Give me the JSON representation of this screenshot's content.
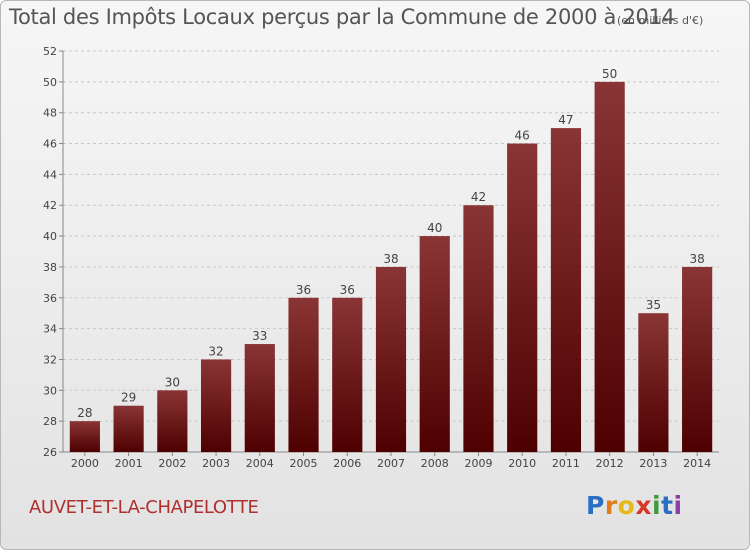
{
  "header": {
    "title": "Total des Impôts Locaux perçus par la Commune de 2000 à 2014",
    "unit": "(en milliers d'€)"
  },
  "footer": {
    "commune": "AUVET-ET-LA-CHAPELOTTE",
    "logo_letters": [
      "P",
      "r",
      "o",
      "x",
      "i",
      "t",
      "i"
    ]
  },
  "colors": {
    "bar_top": "#8a3535",
    "bar_bottom": "#4e0000",
    "grid": "#c8c8c8",
    "commune": "#b03030"
  },
  "chart_data": {
    "type": "bar",
    "title": "Total des Impôts Locaux perçus par la Commune de 2000 à 2014",
    "xlabel": "",
    "ylabel": "",
    "categories": [
      "2000",
      "2001",
      "2002",
      "2003",
      "2004",
      "2005",
      "2006",
      "2007",
      "2008",
      "2009",
      "2010",
      "2011",
      "2012",
      "2013",
      "2014"
    ],
    "values": [
      28,
      29,
      30,
      32,
      33,
      36,
      36,
      38,
      40,
      42,
      46,
      47,
      50,
      35,
      38
    ],
    "ylim": [
      26,
      52
    ],
    "yticks": [
      26,
      28,
      30,
      32,
      34,
      36,
      38,
      40,
      42,
      44,
      46,
      48,
      50,
      52
    ],
    "grid": "horizontal dashed",
    "legend": "none"
  }
}
